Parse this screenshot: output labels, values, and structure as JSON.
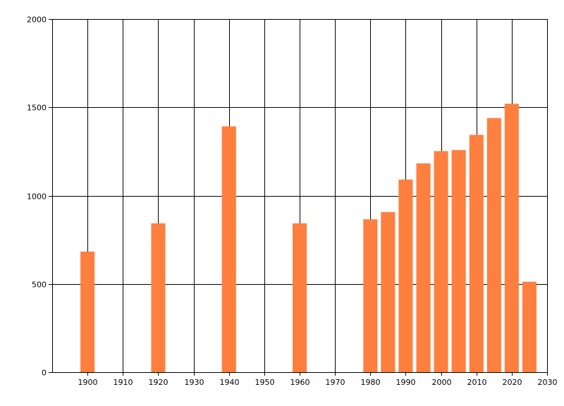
{
  "chart_data": {
    "type": "bar",
    "title": "",
    "xlabel": "",
    "ylabel": "",
    "x": [
      1900,
      1920,
      1940,
      1960,
      1980,
      1985,
      1990,
      1995,
      2000,
      2005,
      2010,
      2015,
      2020,
      2025
    ],
    "values": [
      683,
      843,
      1392,
      843,
      866,
      907,
      1091,
      1183,
      1252,
      1258,
      1344,
      1439,
      1520,
      512
    ],
    "xlim": [
      1890,
      2030
    ],
    "ylim": [
      0,
      2000
    ],
    "x_ticks": [
      "1900",
      "1910",
      "1920",
      "1930",
      "1940",
      "1950",
      "1960",
      "1970",
      "1980",
      "1990",
      "2000",
      "2010",
      "2020",
      "2030"
    ],
    "y_ticks": [
      "0",
      "500",
      "1000",
      "1500",
      "2000"
    ],
    "grid": true,
    "bar_color": "#ff7f3f"
  }
}
